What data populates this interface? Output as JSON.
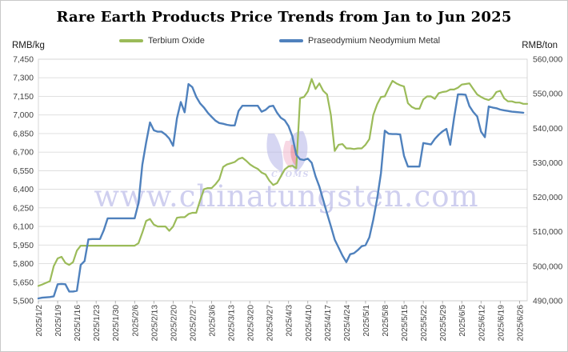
{
  "title": "Rare Earth Products Price Trends from Jan to Jun 2025",
  "left_axis": {
    "unit_label": "RMB/kg",
    "tick_labels": [
      "7,450",
      "7,300",
      "7,150",
      "7,000",
      "6,850",
      "6,700",
      "6,550",
      "6,400",
      "6,250",
      "6,100",
      "5,950",
      "5,800",
      "5,650",
      "5,500"
    ],
    "tick_values": [
      7450,
      7300,
      7150,
      7000,
      6850,
      6700,
      6550,
      6400,
      6250,
      6100,
      5950,
      5800,
      5650,
      5500
    ]
  },
  "right_axis": {
    "unit_label": "RMB/ton",
    "tick_labels": [
      "560,000",
      "550,000",
      "540,000",
      "530,000",
      "520,000",
      "510,000",
      "500,000",
      "490,000"
    ],
    "tick_values": [
      560000,
      550000,
      540000,
      530000,
      520000,
      510000,
      500000,
      490000
    ]
  },
  "x_axis": {
    "labels": [
      "2025/1/2",
      "2025/1/9",
      "2025/1/16",
      "2025/1/23",
      "2025/1/30",
      "2025/2/6",
      "2025/2/13",
      "2025/2/20",
      "2025/2/27",
      "2025/3/6",
      "2025/3/13",
      "2025/3/20",
      "2025/3/27",
      "2025/4/3",
      "2025/4/10",
      "2025/4/17",
      "2025/4/24",
      "2025/5/1",
      "2025/5/8",
      "2025/5/15",
      "2025/5/22",
      "2025/5/29",
      "2025/6/5",
      "2025/6/12",
      "2025/6/19",
      "2025/6/26"
    ],
    "label_day_indices": [
      0,
      5,
      10,
      15,
      20,
      25,
      30,
      35,
      40,
      45,
      50,
      55,
      60,
      65,
      70,
      75,
      80,
      85,
      90,
      95,
      100,
      105,
      110,
      115,
      120,
      125
    ]
  },
  "legend": {
    "items": [
      {
        "label": "Terbium Oxide",
        "color": "#9BBB59"
      },
      {
        "label": "Praseodymium Neodymium Metal",
        "color": "#4F81BD"
      }
    ]
  },
  "watermark": {
    "text": "www.chinatungsten.com",
    "logo_caption": "CTOMS",
    "color": "#a9a9e2"
  },
  "chart_data": {
    "type": "line",
    "title": "Rare Earth Products Price Trends from Jan to Jun 2025",
    "xlabel": "",
    "ylabel_left": "RMB/kg",
    "ylabel_right": "RMB/ton",
    "ylim_left": [
      5500,
      7450
    ],
    "ylim_right": [
      490000,
      560000
    ],
    "grid": true,
    "legend_position": "top",
    "x": [
      "2025/1/2",
      "2025/1/3",
      "2025/1/6",
      "2025/1/7",
      "2025/1/8",
      "2025/1/9",
      "2025/1/10",
      "2025/1/13",
      "2025/1/14",
      "2025/1/15",
      "2025/1/16",
      "2025/1/17",
      "2025/1/20",
      "2025/1/21",
      "2025/1/22",
      "2025/1/23",
      "2025/1/24",
      "2025/1/27",
      "2025/1/28",
      "2025/1/29",
      "2025/1/30",
      "2025/1/31",
      "2025/2/3",
      "2025/2/4",
      "2025/2/5",
      "2025/2/6",
      "2025/2/7",
      "2025/2/10",
      "2025/2/11",
      "2025/2/12",
      "2025/2/13",
      "2025/2/14",
      "2025/2/17",
      "2025/2/18",
      "2025/2/19",
      "2025/2/20",
      "2025/2/21",
      "2025/2/24",
      "2025/2/25",
      "2025/2/26",
      "2025/2/27",
      "2025/2/28",
      "2025/3/3",
      "2025/3/4",
      "2025/3/5",
      "2025/3/6",
      "2025/3/7",
      "2025/3/10",
      "2025/3/11",
      "2025/3/12",
      "2025/3/13",
      "2025/3/14",
      "2025/3/17",
      "2025/3/18",
      "2025/3/19",
      "2025/3/20",
      "2025/3/21",
      "2025/3/24",
      "2025/3/25",
      "2025/3/26",
      "2025/3/27",
      "2025/3/28",
      "2025/3/31",
      "2025/4/1",
      "2025/4/2",
      "2025/4/3",
      "2025/4/4",
      "2025/4/7",
      "2025/4/8",
      "2025/4/9",
      "2025/4/10",
      "2025/4/11",
      "2025/4/14",
      "2025/4/15",
      "2025/4/16",
      "2025/4/17",
      "2025/4/18",
      "2025/4/21",
      "2025/4/22",
      "2025/4/23",
      "2025/4/24",
      "2025/4/25",
      "2025/4/28",
      "2025/4/29",
      "2025/4/30",
      "2025/5/1",
      "2025/5/2",
      "2025/5/5",
      "2025/5/6",
      "2025/5/7",
      "2025/5/8",
      "2025/5/9",
      "2025/5/12",
      "2025/5/13",
      "2025/5/14",
      "2025/5/15",
      "2025/5/16",
      "2025/5/19",
      "2025/5/20",
      "2025/5/21",
      "2025/5/22",
      "2025/5/23",
      "2025/5/26",
      "2025/5/27",
      "2025/5/28",
      "2025/5/29",
      "2025/5/30",
      "2025/6/2",
      "2025/6/3",
      "2025/6/4",
      "2025/6/5",
      "2025/6/6",
      "2025/6/9",
      "2025/6/10",
      "2025/6/11",
      "2025/6/12",
      "2025/6/13",
      "2025/6/16",
      "2025/6/17",
      "2025/6/18",
      "2025/6/19",
      "2025/6/20",
      "2025/6/23",
      "2025/6/24",
      "2025/6/25",
      "2025/6/26",
      "2025/6/27",
      "2025/6/30"
    ],
    "series": [
      {
        "name": "Terbium Oxide",
        "axis": "left",
        "unit": "RMB/kg",
        "color": "#9BBB59",
        "values": [
          5620,
          5632,
          5645,
          5658,
          5780,
          5842,
          5855,
          5806,
          5790,
          5812,
          5905,
          5945,
          5945,
          5945,
          5945,
          5945,
          5945,
          5945,
          5945,
          5945,
          5945,
          5945,
          5945,
          5945,
          5945,
          5945,
          5965,
          6050,
          6145,
          6160,
          6115,
          6100,
          6100,
          6100,
          6065,
          6100,
          6170,
          6175,
          6175,
          6200,
          6210,
          6210,
          6310,
          6400,
          6410,
          6410,
          6440,
          6480,
          6580,
          6600,
          6610,
          6620,
          6645,
          6655,
          6630,
          6600,
          6580,
          6565,
          6535,
          6520,
          6470,
          6435,
          6450,
          6505,
          6560,
          6585,
          6590,
          6570,
          7135,
          7145,
          7190,
          7290,
          7210,
          7255,
          7195,
          7165,
          7000,
          6710,
          6760,
          6765,
          6730,
          6730,
          6725,
          6730,
          6730,
          6760,
          6805,
          7000,
          7085,
          7145,
          7150,
          7215,
          7275,
          7255,
          7240,
          7230,
          7095,
          7065,
          7050,
          7050,
          7125,
          7150,
          7150,
          7130,
          7175,
          7185,
          7190,
          7205,
          7205,
          7220,
          7245,
          7250,
          7255,
          7210,
          7165,
          7145,
          7130,
          7120,
          7140,
          7185,
          7195,
          7135,
          7110,
          7110,
          7100,
          7100,
          7090,
          7090
        ]
      },
      {
        "name": "Praseodymium Neodymium Metal",
        "axis": "right",
        "unit": "RMB/ton",
        "color": "#4F81BD",
        "values": [
          490700,
          490900,
          491000,
          491100,
          491300,
          494800,
          494900,
          494800,
          492700,
          492700,
          492900,
          500400,
          501500,
          507800,
          507900,
          507900,
          507900,
          510500,
          513900,
          513900,
          513900,
          513900,
          513900,
          513900,
          513900,
          513900,
          518300,
          529400,
          535900,
          541700,
          539400,
          539000,
          539000,
          538200,
          537000,
          534900,
          542900,
          547600,
          544600,
          552800,
          551900,
          549100,
          547200,
          546000,
          544500,
          543300,
          542200,
          541500,
          541300,
          541000,
          540800,
          540800,
          545000,
          546500,
          546500,
          546500,
          546500,
          546500,
          544800,
          545300,
          546300,
          546500,
          544500,
          543000,
          542300,
          540600,
          537600,
          532300,
          531000,
          530800,
          531200,
          530000,
          526100,
          523100,
          519200,
          515300,
          511600,
          507700,
          505400,
          503100,
          501200,
          503500,
          503800,
          504700,
          505800,
          506100,
          508400,
          513500,
          519500,
          527000,
          539300,
          538400,
          538300,
          538300,
          538200,
          532000,
          528900,
          528900,
          528900,
          528900,
          535700,
          535500,
          535300,
          536900,
          538100,
          539100,
          539800,
          535200,
          543000,
          549800,
          549800,
          549700,
          546400,
          544700,
          543400,
          539000,
          537400,
          546300,
          546000,
          545800,
          545400,
          545200,
          545000,
          544800,
          544700,
          544600,
          544500
        ]
      }
    ]
  }
}
